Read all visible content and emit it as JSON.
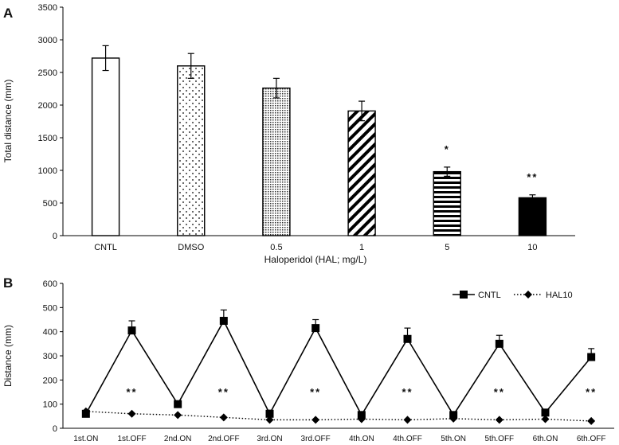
{
  "chart_data": [
    {
      "panel": "A",
      "type": "bar",
      "xlabel": "Haloperidol  (HAL; mg/L)",
      "ylabel": "Total distance (mm)",
      "ylim": [
        0,
        3500
      ],
      "yticks": [
        0,
        500,
        1000,
        1500,
        2000,
        2500,
        3000,
        3500
      ],
      "categories": [
        "CNTL",
        "DMSO",
        "0.5",
        "1",
        "5",
        "10"
      ],
      "values": [
        2720,
        2600,
        2260,
        1910,
        980,
        580
      ],
      "errors": [
        190,
        190,
        150,
        150,
        70,
        45
      ],
      "patterns": [
        "white",
        "dots",
        "dense-dots",
        "diagonal",
        "horizontal",
        "black"
      ],
      "annotations": [
        "",
        "",
        "",
        "",
        "*",
        "**"
      ],
      "grid": false
    },
    {
      "panel": "B",
      "type": "line",
      "ylabel": "Distance (mm)",
      "ylim": [
        0,
        600
      ],
      "yticks": [
        0,
        100,
        200,
        300,
        400,
        500,
        600
      ],
      "categories": [
        "1st.ON",
        "1st.OFF",
        "2nd.ON",
        "2nd.OFF",
        "3rd.ON",
        "3rd.OFF",
        "4th.ON",
        "4th.OFF",
        "5th.ON",
        "5th.OFF",
        "6th.ON",
        "6th.OFF"
      ],
      "series": [
        {
          "name": "CNTL",
          "marker": "square",
          "line": "solid",
          "values": [
            60,
            405,
            100,
            445,
            60,
            415,
            55,
            370,
            55,
            350,
            65,
            295
          ],
          "errors": [
            10,
            40,
            10,
            45,
            15,
            35,
            10,
            45,
            10,
            35,
            10,
            35
          ]
        },
        {
          "name": "HAL10",
          "marker": "diamond",
          "line": "dotted",
          "values": [
            70,
            60,
            55,
            45,
            35,
            35,
            38,
            35,
            40,
            35,
            38,
            30
          ],
          "errors": [
            5,
            5,
            5,
            5,
            5,
            5,
            5,
            5,
            5,
            5,
            5,
            5
          ]
        }
      ],
      "annotations": [
        "",
        "**",
        "",
        "**",
        "",
        "**",
        "",
        "**",
        "",
        "**",
        "",
        "**"
      ],
      "legend": "top-right",
      "grid": false
    }
  ],
  "panel_labels": {
    "a": "A",
    "b": "B"
  }
}
